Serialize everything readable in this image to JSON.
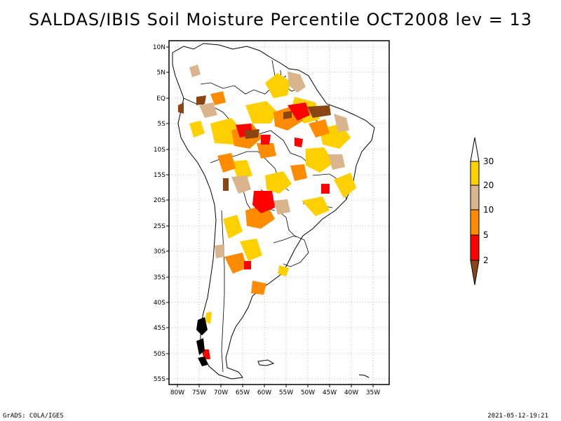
{
  "title": "SALDAS/IBIS Soil Moisture Percentile OCT2008 lev = 13",
  "map": {
    "region": "South America",
    "lat_labels": [
      "10N",
      "5N",
      "EQ",
      "5S",
      "10S",
      "15S",
      "20S",
      "25S",
      "30S",
      "35S",
      "40S",
      "45S",
      "50S",
      "55S"
    ],
    "lon_labels": [
      "80W",
      "75W",
      "70W",
      "65W",
      "60W",
      "55W",
      "50W",
      "45W",
      "40W",
      "35W"
    ]
  },
  "legend": {
    "labels": [
      "30",
      "20",
      "10",
      "5",
      "2"
    ],
    "colors": [
      "#ffffff",
      "#ffd000",
      "#d9b48c",
      "#ff8c00",
      "#ff0000",
      "#8b4513"
    ]
  },
  "footer": {
    "left": "GrADS: COLA/IGES",
    "right": "2021-05-12-19:21"
  }
}
